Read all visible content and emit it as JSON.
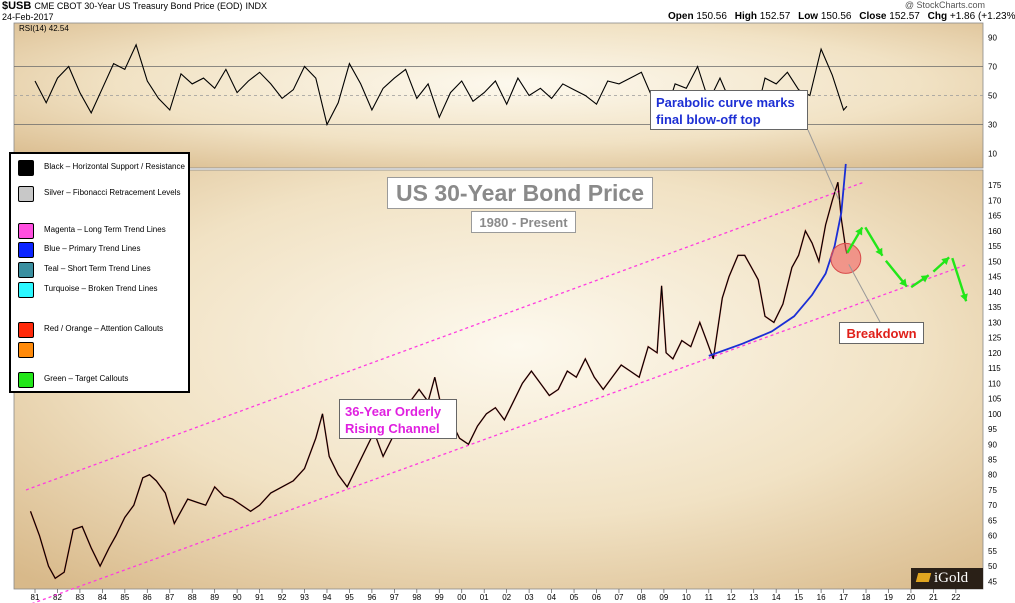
{
  "header": {
    "symbol": "$USB",
    "description": "CME CBOT 30-Year US Treasury Bond Price (EOD)",
    "exchange": "INDX",
    "date": "24-Feb-2017",
    "copyright": "@ StockCharts.com",
    "quote": {
      "open_label": "Open",
      "open": "150.56",
      "high_label": "High",
      "high": "152.57",
      "low_label": "Low",
      "low": "150.56",
      "close_label": "Close",
      "close": "152.57",
      "chg_label": "Chg",
      "chg": "+1.86 (+1.23%)",
      "chg_marker": "▲"
    },
    "rsi_label": "RSI(14) 42.54"
  },
  "legend": {
    "items": [
      {
        "color": "#000000",
        "label": "Black – Horizontal Support / Resistance"
      },
      {
        "color": "#c8c8c8",
        "label": "Silver – Fibonacci Retracement Levels"
      },
      {
        "color": "#ff4fe0",
        "label": "Magenta – Long Term Trend Lines"
      },
      {
        "color": "#0b24ff",
        "label": "Blue – Primary Trend Lines"
      },
      {
        "color": "#3a8fa0",
        "label": "Teal – Short Term Trend Lines"
      },
      {
        "color": "#2cf7ff",
        "label": "Turquoise – Broken Trend Lines"
      },
      {
        "color": "#ff2a0a",
        "label": "Red / Orange – Attention Callouts"
      },
      {
        "color": "#ff8a0a",
        "label": ""
      },
      {
        "color": "#22e619",
        "label": "Green – Target Callouts"
      }
    ]
  },
  "callouts": {
    "title": "US 30-Year Bond Price",
    "subtitle": "1980 - Present",
    "parabolic_line1": "Parabolic curve marks",
    "parabolic_line2": "final blow-off top",
    "channel_line1": "36-Year Orderly",
    "channel_line2": "Rising Channel",
    "breakdown": "Breakdown"
  },
  "brand": {
    "text": "iGold",
    "icon": "gold-bar-icon"
  },
  "colors": {
    "magenta": "#ff3ce0",
    "blue": "#1a2ed6",
    "green": "#22e619",
    "red": "#f06060",
    "price": "#000000",
    "price_down": "#d40000"
  },
  "chart_data": [
    {
      "type": "line",
      "name": "RSI(14)",
      "ylim": [
        0,
        100
      ],
      "yticks": [
        10,
        30,
        50,
        70,
        90
      ],
      "reference_lines": [
        30,
        50,
        70
      ],
      "last_value": 42.54,
      "x": [
        1981.0,
        1981.5,
        1982.0,
        1982.5,
        1983.0,
        1983.5,
        1984.0,
        1984.5,
        1985.0,
        1985.5,
        1986.0,
        1986.5,
        1987.0,
        1987.5,
        1988.0,
        1988.5,
        1989.0,
        1989.5,
        1990.0,
        1990.5,
        1991.0,
        1991.5,
        1992.0,
        1992.5,
        1993.0,
        1993.5,
        1994.0,
        1994.5,
        1995.0,
        1995.5,
        1996.0,
        1996.5,
        1997.0,
        1997.5,
        1998.0,
        1998.5,
        1999.0,
        1999.5,
        2000.0,
        2000.5,
        2001.0,
        2001.5,
        2002.0,
        2002.5,
        2003.0,
        2003.5,
        2004.0,
        2004.5,
        2005.0,
        2005.5,
        2006.0,
        2006.5,
        2007.0,
        2007.5,
        2008.0,
        2008.5,
        2009.0,
        2009.5,
        2010.0,
        2010.5,
        2011.0,
        2011.5,
        2012.0,
        2012.5,
        2013.0,
        2013.5,
        2014.0,
        2014.5,
        2015.0,
        2015.5,
        2016.0,
        2016.5,
        2017.0,
        2017.15
      ],
      "values": [
        60,
        45,
        62,
        70,
        52,
        38,
        55,
        72,
        68,
        85,
        60,
        48,
        40,
        65,
        58,
        62,
        55,
        68,
        52,
        60,
        66,
        58,
        48,
        54,
        70,
        62,
        30,
        45,
        72,
        58,
        40,
        55,
        62,
        68,
        48,
        58,
        35,
        52,
        60,
        46,
        52,
        60,
        44,
        62,
        50,
        55,
        48,
        58,
        54,
        50,
        44,
        60,
        58,
        62,
        66,
        48,
        34,
        58,
        55,
        70,
        46,
        62,
        44,
        50,
        30,
        62,
        58,
        66,
        54,
        50,
        82,
        64,
        40,
        42.54
      ]
    },
    {
      "type": "line",
      "name": "Price",
      "ylim": [
        42.5,
        180
      ],
      "yticks": [
        45,
        50,
        55,
        60,
        65,
        70,
        75,
        80,
        85,
        90,
        95,
        100,
        105,
        110,
        115,
        120,
        125,
        130,
        135,
        140,
        145,
        150,
        155,
        160,
        165,
        170,
        175
      ],
      "xtick_labels": [
        "81",
        "82",
        "83",
        "84",
        "85",
        "86",
        "87",
        "88",
        "89",
        "90",
        "91",
        "92",
        "93",
        "94",
        "95",
        "96",
        "97",
        "98",
        "99",
        "00",
        "01",
        "02",
        "03",
        "04",
        "05",
        "06",
        "07",
        "08",
        "09",
        "10",
        "11",
        "12",
        "13",
        "14",
        "15",
        "16",
        "17",
        "18",
        "19",
        "20",
        "21",
        "22"
      ],
      "x": [
        1980.8,
        1981.2,
        1981.6,
        1981.9,
        1982.3,
        1982.7,
        1983.1,
        1983.5,
        1983.9,
        1984.3,
        1984.6,
        1985.0,
        1985.4,
        1985.8,
        1986.1,
        1986.4,
        1986.8,
        1987.2,
        1987.5,
        1987.8,
        1988.2,
        1988.6,
        1989.0,
        1989.4,
        1989.8,
        1990.2,
        1990.6,
        1991.0,
        1991.5,
        1992.0,
        1992.5,
        1993.0,
        1993.5,
        1993.8,
        1994.1,
        1994.5,
        1994.9,
        1995.3,
        1995.7,
        1996.1,
        1996.5,
        1996.9,
        1997.3,
        1997.7,
        1998.1,
        1998.5,
        1998.8,
        1999.1,
        1999.5,
        1999.9,
        2000.3,
        2000.7,
        2001.1,
        2001.5,
        2001.9,
        2002.3,
        2002.7,
        2003.1,
        2003.5,
        2003.9,
        2004.3,
        2004.7,
        2005.1,
        2005.5,
        2005.9,
        2006.3,
        2006.7,
        2007.1,
        2007.5,
        2007.9,
        2008.3,
        2008.7,
        2008.9,
        2009.1,
        2009.4,
        2009.8,
        2010.2,
        2010.6,
        2010.9,
        2011.2,
        2011.6,
        2011.9,
        2012.3,
        2012.6,
        2012.9,
        2013.2,
        2013.5,
        2013.9,
        2014.3,
        2014.7,
        2015.0,
        2015.3,
        2015.6,
        2015.9,
        2016.2,
        2016.5,
        2016.75,
        2016.9,
        2017.1,
        2017.15
      ],
      "values": [
        68,
        60,
        50,
        46,
        48,
        62,
        63,
        56,
        50,
        56,
        60,
        66,
        70,
        79,
        80,
        78,
        74,
        64,
        68,
        72,
        71,
        70,
        76,
        73,
        72,
        70,
        68,
        70,
        74,
        76,
        78,
        82,
        92,
        100,
        86,
        80,
        76,
        82,
        88,
        94,
        86,
        92,
        98,
        104,
        108,
        104,
        112,
        102,
        98,
        92,
        90,
        96,
        100,
        102,
        98,
        104,
        110,
        114,
        110,
        106,
        108,
        114,
        112,
        118,
        112,
        108,
        112,
        116,
        114,
        112,
        122,
        120,
        142,
        120,
        118,
        124,
        122,
        130,
        124,
        118,
        138,
        145,
        152,
        152,
        148,
        144,
        132,
        130,
        136,
        148,
        152,
        160,
        156,
        150,
        162,
        170,
        176,
        164,
        154,
        152.57
      ]
    },
    {
      "type": "line",
      "name": "Channel and projection overlays",
      "upper_channel": {
        "x": [
          1980.6,
          2017.9
        ],
        "y": [
          75,
          176
        ]
      },
      "lower_channel": {
        "x": [
          1980.6,
          2022.5
        ],
        "y": [
          37,
          149
        ]
      },
      "parabolic_curve": {
        "x": [
          2011.0,
          2012.5,
          2013.8,
          2014.8,
          2015.6,
          2016.2,
          2016.6,
          2016.9,
          2017.1
        ],
        "y": [
          119,
          123,
          127,
          132,
          139,
          146,
          155,
          166,
          182
        ]
      },
      "target_path": {
        "x": [
          2017.1,
          2017.9,
          2018.8,
          2019.9,
          2020.9,
          2021.8,
          2022.5
        ],
        "y": [
          152,
          162,
          151,
          141,
          146,
          152,
          136
        ]
      },
      "breakdown_point": {
        "x": 2017.1,
        "y": 151
      }
    }
  ]
}
